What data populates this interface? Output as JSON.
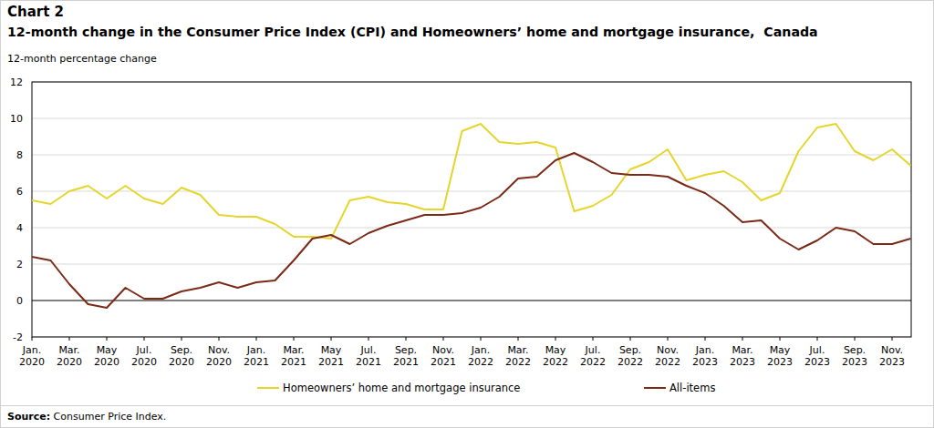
{
  "chart_data": {
    "type": "line",
    "title": "Chart 2",
    "subtitle": "12-month change in the Consumer Price Index (CPI) and Homeowners’ home and mortgage insurance,  Canada",
    "y_label": "12-month percentage change",
    "source": "Source: Consumer Price Index.",
    "categories": [
      "Jan. 2020",
      null,
      "Mar. 2020",
      null,
      "May 2020",
      null,
      "Jul. 2020",
      null,
      "Sep. 2020",
      null,
      "Nov. 2020",
      null,
      "Jan. 2021",
      null,
      "Mar. 2021",
      null,
      "May 2021",
      null,
      "Jul. 2021",
      null,
      "Sep. 2021",
      null,
      "Nov. 2021",
      null,
      "Jan. 2022",
      null,
      "Mar. 2022",
      null,
      "May 2022",
      null,
      "Jul. 2022",
      null,
      "Sep. 2022",
      null,
      "Nov. 2022",
      null,
      "Jan. 2023",
      null,
      "Mar. 2023",
      null,
      "May 2023",
      null,
      "Jul. 2023",
      null,
      "Sep. 2023",
      null,
      "Nov. 2023",
      null
    ],
    "series": [
      {
        "name": "Homeowners’ home and mortgage insurance",
        "color": "#e5d52c",
        "values": [
          5.5,
          5.3,
          6.0,
          6.3,
          5.6,
          6.3,
          5.6,
          5.3,
          6.2,
          5.8,
          4.7,
          4.6,
          4.6,
          4.2,
          3.5,
          3.5,
          3.4,
          5.5,
          5.7,
          5.4,
          5.3,
          5.0,
          5.0,
          9.3,
          9.7,
          8.7,
          8.6,
          8.7,
          8.4,
          4.9,
          5.2,
          5.8,
          7.2,
          7.6,
          8.3,
          6.6,
          6.9,
          7.1,
          6.5,
          5.5,
          5.9,
          8.2,
          9.5,
          9.7,
          8.2,
          7.7,
          8.3,
          7.4
        ]
      },
      {
        "name": "All-items",
        "color": "#7a2a16",
        "values": [
          2.4,
          2.2,
          0.9,
          -0.2,
          -0.4,
          0.7,
          0.1,
          0.1,
          0.5,
          0.7,
          1.0,
          0.7,
          1.0,
          1.1,
          2.2,
          3.4,
          3.6,
          3.1,
          3.7,
          4.1,
          4.4,
          4.7,
          4.7,
          4.8,
          5.1,
          5.7,
          6.7,
          6.8,
          7.7,
          8.1,
          7.6,
          7.0,
          6.9,
          6.9,
          6.8,
          6.3,
          5.9,
          5.2,
          4.3,
          4.4,
          3.4,
          2.8,
          3.3,
          4.0,
          3.8,
          3.1,
          3.1,
          3.4
        ]
      }
    ],
    "ylim": [
      -2,
      12
    ],
    "yticks": [
      -2,
      0,
      2,
      4,
      6,
      8,
      10,
      12
    ],
    "grid": true,
    "legend": "bottom"
  }
}
